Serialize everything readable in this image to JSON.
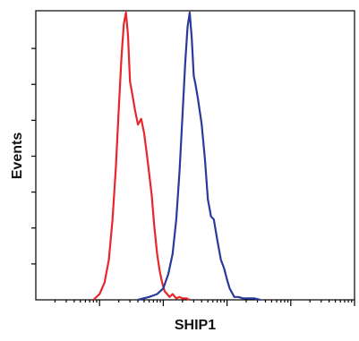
{
  "chart_data": {
    "type": "line",
    "title": "",
    "xlabel": "SHIP1",
    "ylabel": "Events",
    "x_scale": "log",
    "xlim": [
      1,
      100000
    ],
    "ylim": [
      0,
      100
    ],
    "x_minor_ticks": [
      2,
      3,
      4,
      5,
      6,
      7,
      8,
      9,
      20,
      30,
      40,
      50,
      60,
      70,
      80,
      90,
      200,
      300,
      400,
      500,
      600,
      700,
      800,
      900,
      2000,
      3000,
      4000,
      5000,
      6000,
      7000,
      8000,
      9000,
      20000,
      30000,
      40000,
      50000,
      60000,
      70000,
      80000,
      90000
    ],
    "x_major_ticks": [
      10,
      100,
      1000,
      10000,
      100000
    ],
    "y_ticks": [
      12.5,
      25,
      37.5,
      50,
      62.5,
      75,
      87.5
    ],
    "grid": false,
    "legend": "none",
    "series": [
      {
        "color": "#e8262c",
        "x": [
          8.0,
          10.0,
          12.0,
          14.0,
          16.0,
          18.0,
          20.0,
          22.0,
          24.0,
          26.0,
          28.0,
          30.0,
          33.0,
          36.0,
          40.0,
          45.0,
          50.0,
          55.0,
          60.0,
          66.0,
          72.0,
          80.0,
          88.0,
          96.0,
          105.0,
          115.0,
          125.0,
          140.0,
          160.0,
          180.0,
          200.0,
          230.0,
          260.0
        ],
        "y": [
          0,
          2,
          6,
          14,
          28,
          46,
          66,
          84,
          96,
          100,
          92,
          76,
          71,
          66,
          61,
          63,
          58,
          51,
          44,
          36,
          26,
          16,
          10,
          6,
          3,
          2,
          1,
          2,
          0.5,
          1,
          0.5,
          0.5,
          0
        ],
        "values": [
          0,
          2,
          6,
          14,
          28,
          46,
          66,
          84,
          96,
          100,
          92,
          76,
          71,
          66,
          61,
          63,
          58,
          51,
          44,
          36,
          26,
          16,
          10,
          6,
          3,
          2,
          1,
          2,
          0.5,
          1,
          0.5,
          0.5,
          0
        ]
      },
      {
        "color": "#2a3a9a",
        "x": [
          40.0,
          60.0,
          80.0,
          100.0,
          120.0,
          140.0,
          160.0,
          180.0,
          200.0,
          220.0,
          240.0,
          260.0,
          280.0,
          300.0,
          320.0,
          350.0,
          400.0,
          450.0,
          500.0,
          560.0,
          620.0,
          700.0,
          800.0,
          900.0,
          1000.0,
          1100.0,
          1300.0,
          1500.0,
          1800.0,
          2200.0,
          2700.0,
          3300.0
        ],
        "y": [
          0,
          1,
          2,
          4,
          9,
          16,
          28,
          45,
          64,
          82,
          95,
          100,
          91,
          78,
          75,
          70,
          61,
          49,
          35,
          29,
          28,
          21,
          14,
          11,
          7,
          4,
          1,
          1,
          0.5,
          0.5,
          0.5,
          0
        ],
        "values": [
          0,
          1,
          2,
          4,
          9,
          16,
          28,
          45,
          64,
          82,
          95,
          100,
          91,
          78,
          75,
          70,
          61,
          49,
          35,
          29,
          28,
          21,
          14,
          11,
          7,
          4,
          1,
          1,
          0.5,
          0.5,
          0.5,
          0
        ]
      }
    ]
  }
}
